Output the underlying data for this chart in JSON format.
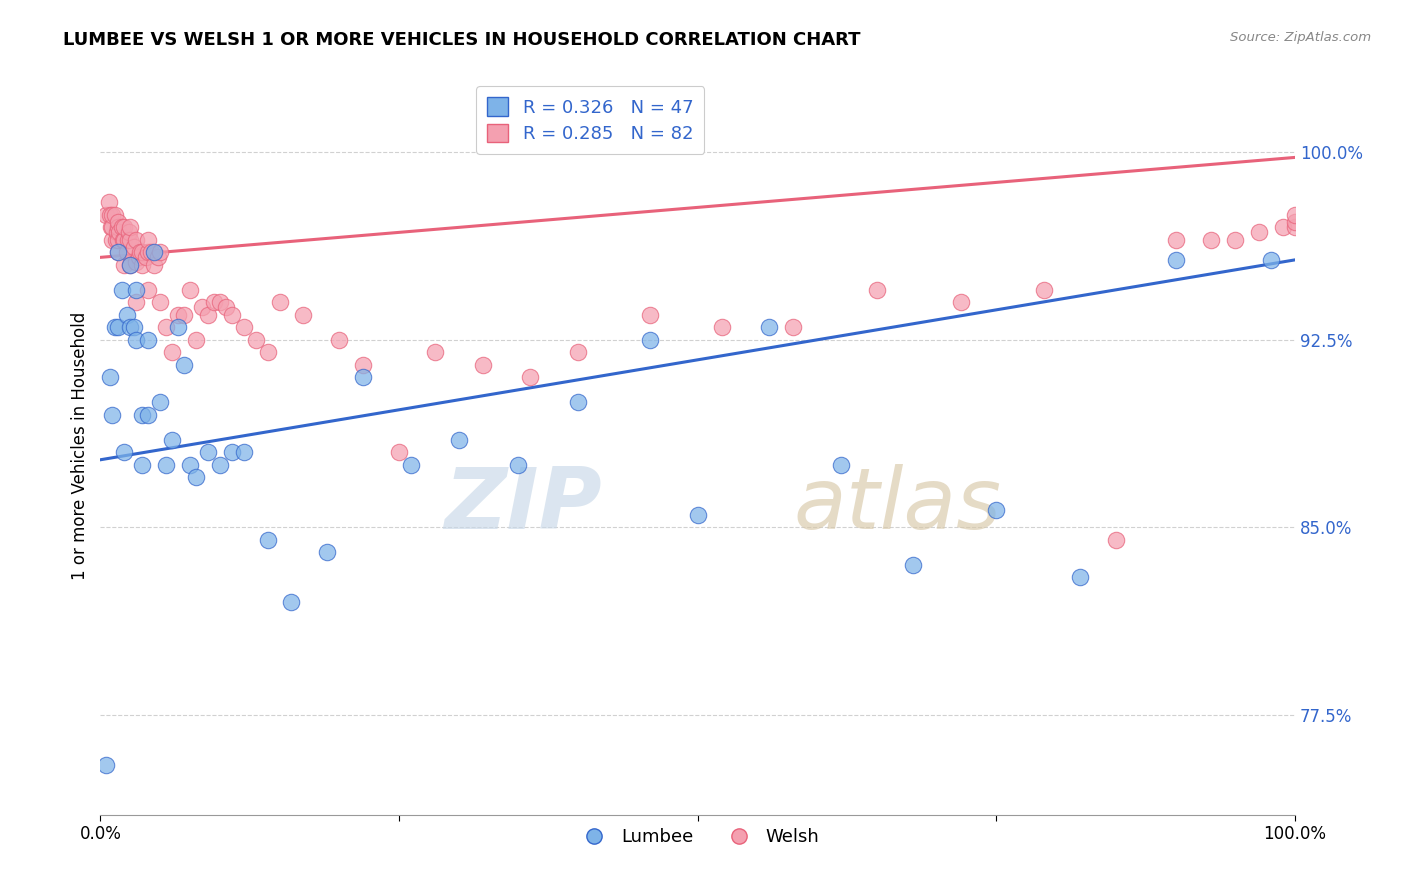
{
  "title": "LUMBEE VS WELSH 1 OR MORE VEHICLES IN HOUSEHOLD CORRELATION CHART",
  "source_text": "Source: ZipAtlas.com",
  "ylabel": "1 or more Vehicles in Household",
  "xlim": [
    0.0,
    1.0
  ],
  "ylim": [
    0.735,
    1.03
  ],
  "yticks": [
    0.775,
    0.85,
    0.925,
    1.0
  ],
  "ytick_labels": [
    "77.5%",
    "85.0%",
    "92.5%",
    "100.0%"
  ],
  "xticks": [
    0.0,
    0.25,
    0.5,
    0.75,
    1.0
  ],
  "xtick_labels": [
    "0.0%",
    "",
    "",
    "",
    "100.0%"
  ],
  "lumbee_R": 0.326,
  "lumbee_N": 47,
  "welsh_R": 0.285,
  "welsh_N": 82,
  "lumbee_color": "#7EB3E8",
  "welsh_color": "#F4A0B0",
  "lumbee_line_color": "#3366CC",
  "welsh_line_color": "#E8627A",
  "watermark_zip": "ZIP",
  "watermark_atlas": "atlas",
  "background_color": "#FFFFFF",
  "lumbee_x": [
    0.005,
    0.008,
    0.01,
    0.012,
    0.015,
    0.015,
    0.018,
    0.02,
    0.022,
    0.025,
    0.025,
    0.028,
    0.03,
    0.03,
    0.035,
    0.035,
    0.04,
    0.04,
    0.045,
    0.05,
    0.055,
    0.06,
    0.065,
    0.07,
    0.075,
    0.08,
    0.09,
    0.1,
    0.11,
    0.12,
    0.14,
    0.16,
    0.19,
    0.22,
    0.26,
    0.3,
    0.35,
    0.4,
    0.46,
    0.5,
    0.56,
    0.62,
    0.68,
    0.75,
    0.82,
    0.9,
    0.98
  ],
  "lumbee_y": [
    0.755,
    0.91,
    0.895,
    0.93,
    0.93,
    0.96,
    0.945,
    0.88,
    0.935,
    0.93,
    0.955,
    0.93,
    0.925,
    0.945,
    0.895,
    0.875,
    0.895,
    0.925,
    0.96,
    0.9,
    0.875,
    0.885,
    0.93,
    0.915,
    0.875,
    0.87,
    0.88,
    0.875,
    0.88,
    0.88,
    0.845,
    0.82,
    0.84,
    0.91,
    0.875,
    0.885,
    0.875,
    0.9,
    0.925,
    0.855,
    0.93,
    0.875,
    0.835,
    0.857,
    0.83,
    0.957,
    0.957
  ],
  "welsh_x": [
    0.005,
    0.007,
    0.008,
    0.009,
    0.01,
    0.01,
    0.01,
    0.012,
    0.013,
    0.014,
    0.015,
    0.015,
    0.015,
    0.015,
    0.016,
    0.018,
    0.019,
    0.02,
    0.02,
    0.02,
    0.022,
    0.023,
    0.024,
    0.025,
    0.025,
    0.025,
    0.028,
    0.03,
    0.03,
    0.03,
    0.032,
    0.033,
    0.035,
    0.035,
    0.038,
    0.04,
    0.04,
    0.04,
    0.042,
    0.045,
    0.048,
    0.05,
    0.05,
    0.055,
    0.06,
    0.065,
    0.07,
    0.075,
    0.08,
    0.085,
    0.09,
    0.095,
    0.1,
    0.105,
    0.11,
    0.12,
    0.13,
    0.14,
    0.15,
    0.17,
    0.2,
    0.22,
    0.25,
    0.28,
    0.32,
    0.36,
    0.4,
    0.46,
    0.52,
    0.58,
    0.65,
    0.72,
    0.79,
    0.85,
    0.9,
    0.93,
    0.95,
    0.97,
    0.99,
    1.0,
    1.0,
    1.0
  ],
  "welsh_y": [
    0.975,
    0.98,
    0.975,
    0.97,
    0.965,
    0.97,
    0.975,
    0.975,
    0.965,
    0.968,
    0.96,
    0.965,
    0.97,
    0.972,
    0.968,
    0.97,
    0.965,
    0.955,
    0.965,
    0.97,
    0.96,
    0.965,
    0.968,
    0.955,
    0.965,
    0.97,
    0.962,
    0.94,
    0.956,
    0.965,
    0.958,
    0.96,
    0.955,
    0.96,
    0.958,
    0.945,
    0.96,
    0.965,
    0.96,
    0.955,
    0.958,
    0.94,
    0.96,
    0.93,
    0.92,
    0.935,
    0.935,
    0.945,
    0.925,
    0.938,
    0.935,
    0.94,
    0.94,
    0.938,
    0.935,
    0.93,
    0.925,
    0.92,
    0.94,
    0.935,
    0.925,
    0.915,
    0.88,
    0.92,
    0.915,
    0.91,
    0.92,
    0.935,
    0.93,
    0.93,
    0.945,
    0.94,
    0.945,
    0.845,
    0.965,
    0.965,
    0.965,
    0.968,
    0.97,
    0.97,
    0.972,
    0.975
  ]
}
